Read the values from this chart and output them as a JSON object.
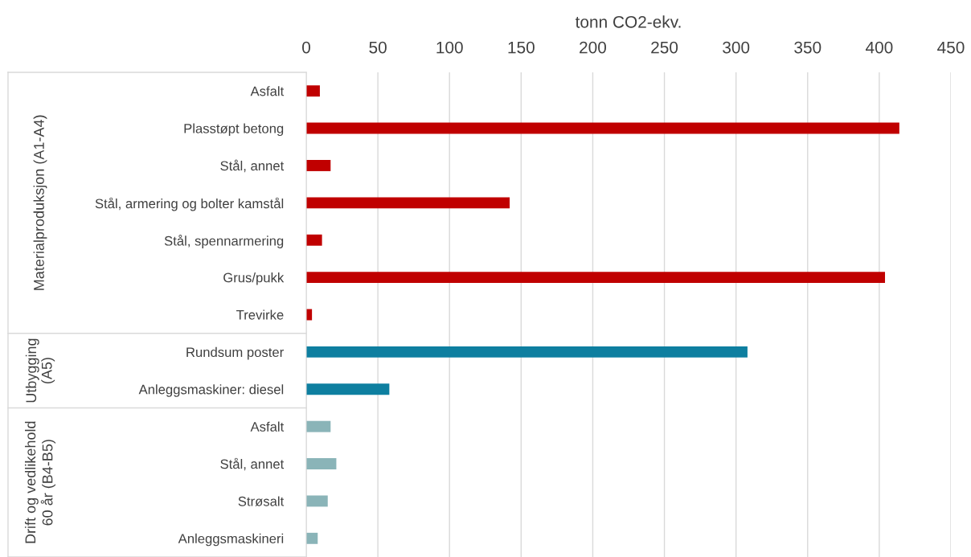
{
  "chart_data": {
    "type": "bar",
    "orientation": "horizontal",
    "xlabel": "tonn CO2-ekv.",
    "categories": [
      "Asfalt",
      "Plasstøpt betong",
      "Stål, annet",
      "Stål, armering og bolter kamstål",
      "Stål, spennarmering",
      "Grus/pukk",
      "Trevirke",
      "Rundsum poster",
      "Anleggsmaskiner: diesel",
      "Asfalt",
      "Stål, annet",
      "Strøsalt",
      "Anleggsmaskineri"
    ],
    "values": [
      9.5,
      414,
      17,
      142,
      11,
      404,
      4,
      308,
      58,
      17,
      21,
      15,
      8
    ],
    "colors": [
      "#c00000",
      "#c00000",
      "#c00000",
      "#c00000",
      "#c00000",
      "#c00000",
      "#c00000",
      "#0e7fa0",
      "#0e7fa0",
      "#8ab4b8",
      "#8ab4b8",
      "#8ab4b8",
      "#8ab4b8"
    ],
    "xlim": [
      0,
      450
    ],
    "xticks": [
      0,
      50,
      100,
      150,
      200,
      250,
      300,
      350,
      400,
      450
    ],
    "grid": "x",
    "annotations": [
      "Materialproduksjon (A1-A4)",
      "Utbygging\n(A5)",
      "Drift og vedlikehold\n60 år (B4-B5)"
    ]
  }
}
